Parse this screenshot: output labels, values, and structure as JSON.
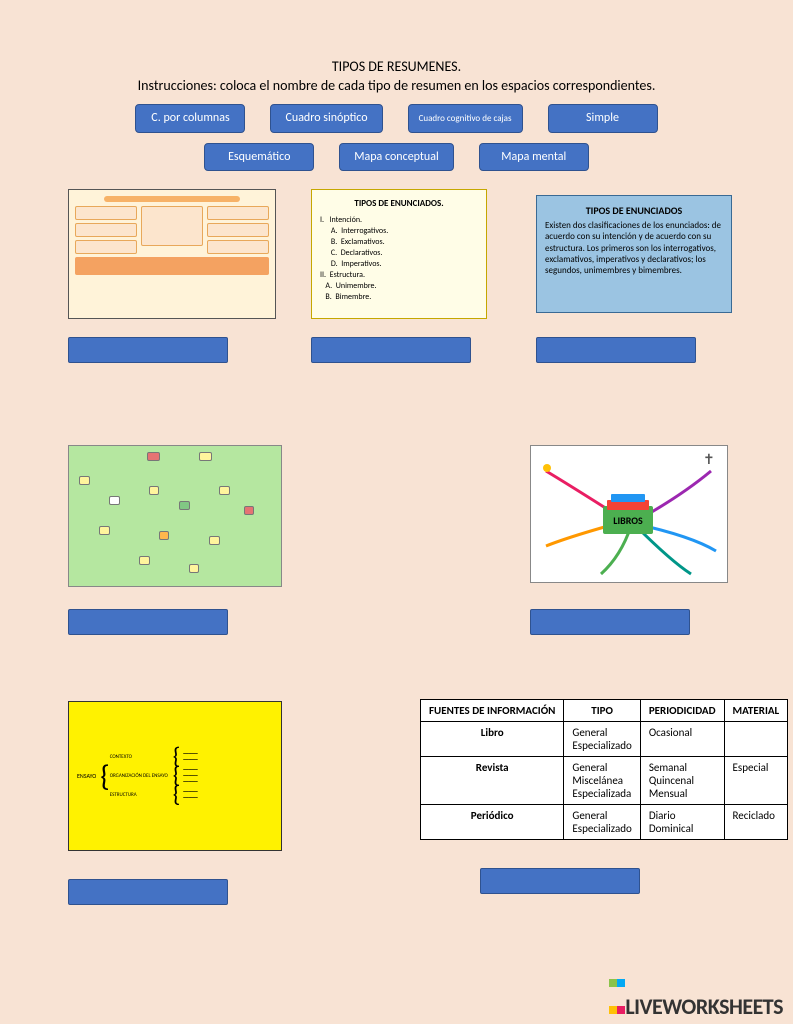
{
  "title": "TIPOS DE RESUMENES.",
  "instructions": "Instrucciones: coloca el nombre de cada tipo de resumen en los espacios correspondientes.",
  "drag_labels": {
    "row1": [
      "C. por columnas",
      "Cuadro sinóptico",
      "Cuadro cognitivo de cajas",
      "Simple"
    ],
    "row2": [
      "Esquemático",
      "Mapa conceptual",
      "Mapa mental"
    ]
  },
  "example2": {
    "title": "TIPOS DE ENUNCIADOS.",
    "items": [
      "I.   Intención.",
      "      A.  Interrogativos.",
      "      B.  Exclamativos.",
      "      C.  Declarativos.",
      "      D.  Imperativos.",
      "",
      "II.  Estructura.",
      "   A.  Unimembre.",
      "   B.  Bimembre."
    ]
  },
  "example3": {
    "title": "TIPOS DE ENUNCIADOS",
    "text": "Existen dos clasificaciones de los enunciados: de acuerdo con su intención y de acuerdo con su estructura. Los primeros son los interrogativos, exclamativos, imperativos y declarativos; los segundos, unimembres y bimembres."
  },
  "example5": {
    "center": "LIBROS"
  },
  "example6": {
    "rows": [
      "CONTEXTO",
      "ORGANIZACIÓN DEL ENSAYO",
      "ESTRUCTURA"
    ],
    "side": "ENSAYO"
  },
  "table": {
    "headers": [
      "FUENTES DE INFORMACIÓN",
      "TIPO",
      "PERIODICIDAD",
      "MATERIAL"
    ],
    "rows": [
      [
        "Libro",
        "General\nEspecializado",
        "Ocasional",
        ""
      ],
      [
        "Revista",
        "General\nMiscelánea\nEspecializada",
        "Semanal\nQuincenal\nMensual",
        "Especial"
      ],
      [
        "Periódico",
        "General\nEspecializado",
        "Diario\nDominical",
        "Reciclado"
      ]
    ]
  },
  "watermark": "LIVEWORKSHEETS",
  "colors": {
    "bg": "#f8e3d4",
    "button": "#4472c4",
    "button_border": "#2f528f"
  }
}
